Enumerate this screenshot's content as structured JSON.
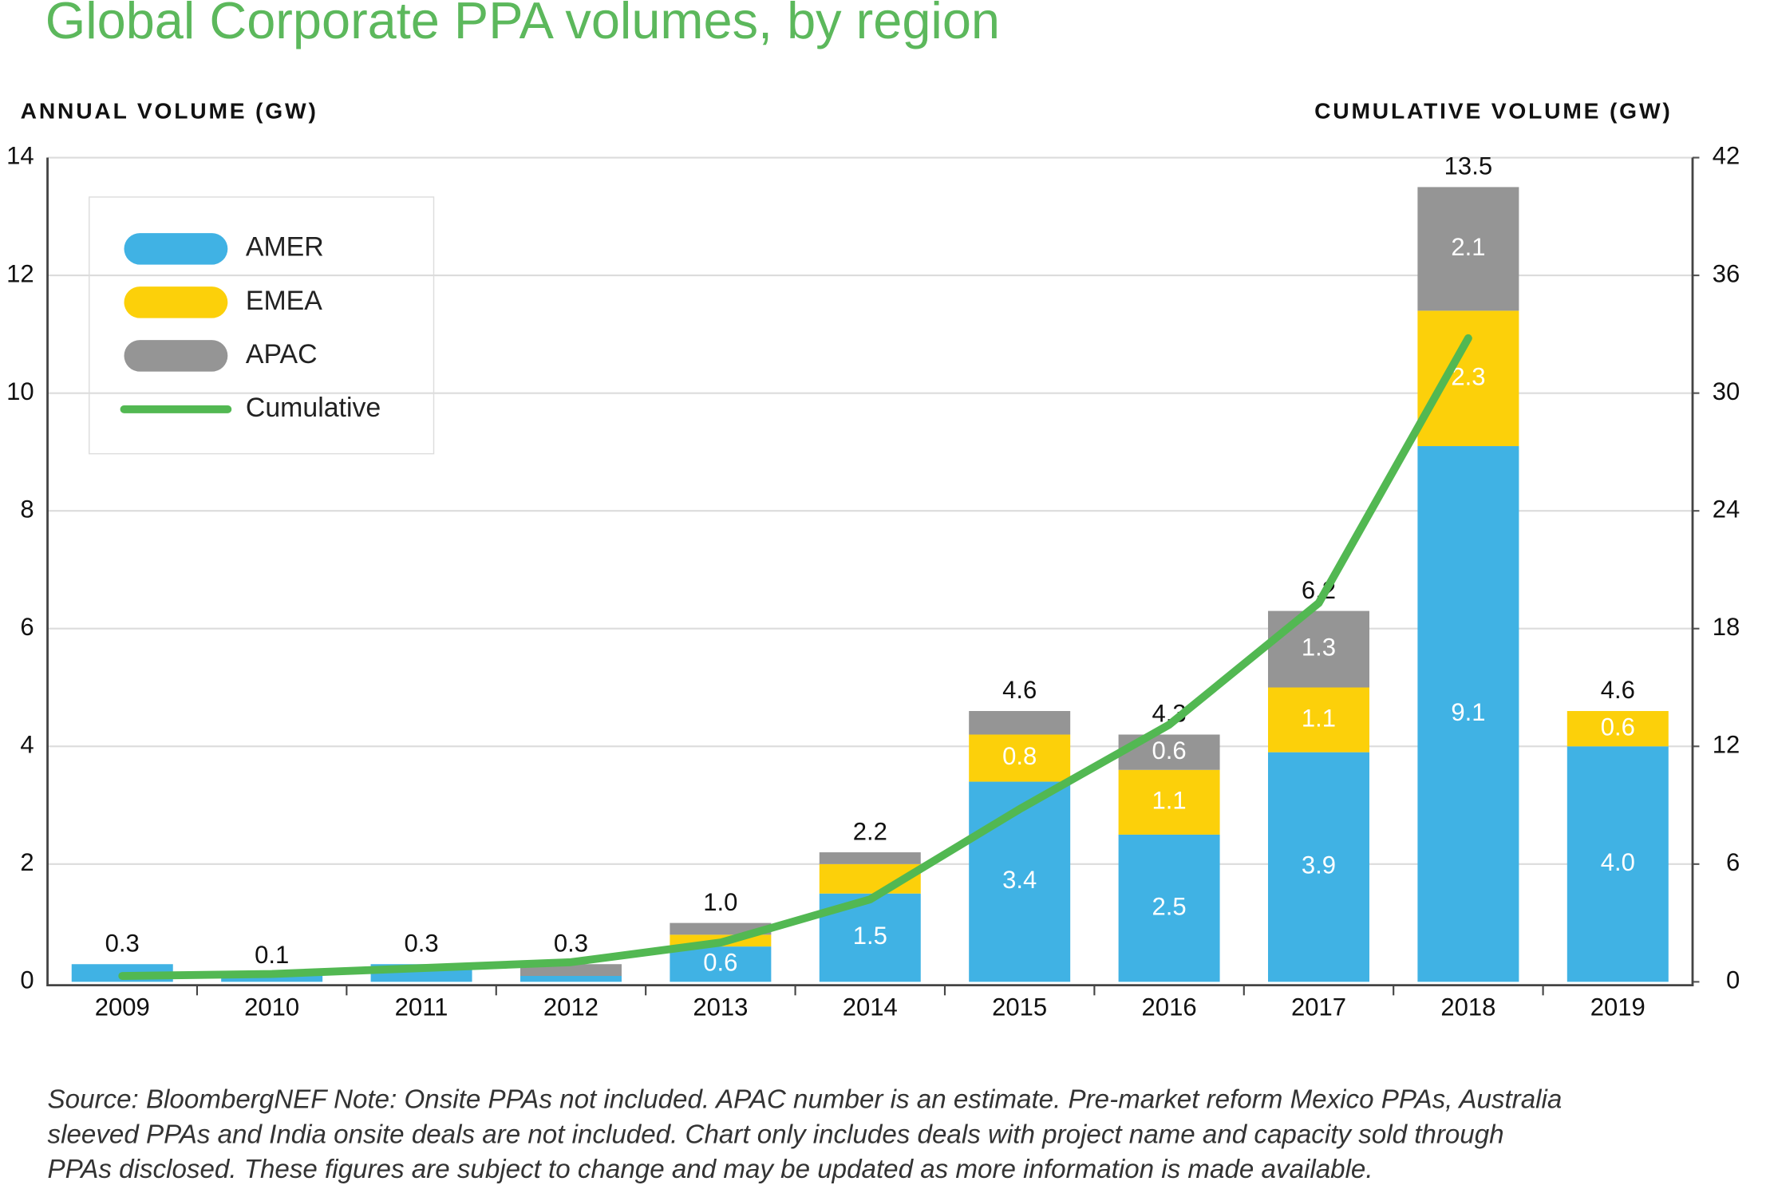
{
  "chart_data": {
    "type": "bar",
    "title": "Global Corporate PPA volumes, by region",
    "y_label": "ANNUAL VOLUME (GW)",
    "y2_label": "CUMULATIVE VOLUME (GW)",
    "categories": [
      "2009",
      "2010",
      "2011",
      "2012",
      "2013",
      "2014",
      "2015",
      "2016",
      "2017",
      "2018",
      "2019"
    ],
    "series": [
      {
        "name": "AMER",
        "color": "#40b2e4",
        "values": [
          0.3,
          0.1,
          0.3,
          0.1,
          0.6,
          1.5,
          3.4,
          2.5,
          3.9,
          9.1,
          4.0
        ],
        "value_labels": [
          null,
          null,
          null,
          null,
          "0.6",
          "1.5",
          "3.4",
          "2.5",
          "3.9",
          "9.1",
          "4.0"
        ]
      },
      {
        "name": "EMEA",
        "color": "#fcd00a",
        "values": [
          0,
          0,
          0,
          0,
          0.2,
          0.5,
          0.8,
          1.1,
          1.1,
          2.3,
          0.6
        ],
        "value_labels": [
          null,
          null,
          null,
          null,
          null,
          null,
          "0.8",
          "1.1",
          "1.1",
          "2.3",
          "0.6"
        ]
      },
      {
        "name": "APAC",
        "color": "#959595",
        "values": [
          0,
          0,
          0,
          0.2,
          0.2,
          0.2,
          0.4,
          0.6,
          1.3,
          2.1,
          0
        ],
        "value_labels": [
          null,
          null,
          null,
          null,
          null,
          null,
          null,
          "0.6",
          "1.3",
          "2.1",
          null
        ]
      }
    ],
    "totals": [
      0.3,
      0.1,
      0.3,
      0.3,
      1.0,
      2.2,
      4.6,
      4.3,
      6.2,
      13.5,
      4.6
    ],
    "total_labels": [
      "0.3",
      "0.1",
      "0.3",
      "0.3",
      "1.0",
      "2.2",
      "4.6",
      "4.3",
      "6.2",
      "13.5",
      "4.6"
    ],
    "cumulative": {
      "name": "Cumulative",
      "color": "#52b852",
      "axis": "y2",
      "values": [
        0.3,
        0.4,
        0.7,
        1.0,
        2.0,
        4.2,
        8.8,
        13.1,
        19.3,
        32.8,
        null
      ]
    },
    "ylim": [
      0,
      14
    ],
    "yticks": [
      0,
      2,
      4,
      6,
      8,
      10,
      12,
      14
    ],
    "y2lim": [
      0,
      42
    ],
    "y2ticks": [
      0,
      6,
      12,
      18,
      24,
      30,
      36,
      42
    ],
    "grid": true,
    "legend": "upper left",
    "note_lines": [
      "Source: BloombergNEF   Note: Onsite PPAs not included. APAC number is an estimate. Pre-market reform Mexico PPAs, Australia",
      "sleeved PPAs and India onsite deals are not included. Chart only includes deals with project name and capacity sold through",
      "PPAs disclosed. These figures are subject to change and may be updated as more information is made available."
    ]
  }
}
